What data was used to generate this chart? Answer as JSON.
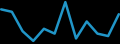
{
  "x": [
    0,
    1,
    2,
    3,
    4,
    5,
    6,
    7,
    8,
    9,
    10,
    11
  ],
  "y": [
    0.75,
    0.7,
    0.3,
    0.1,
    0.35,
    0.25,
    0.9,
    0.15,
    0.5,
    0.25,
    0.2,
    0.65
  ],
  "line_color": "#2196c8",
  "line_width": 1.8,
  "background_color": "#000000"
}
